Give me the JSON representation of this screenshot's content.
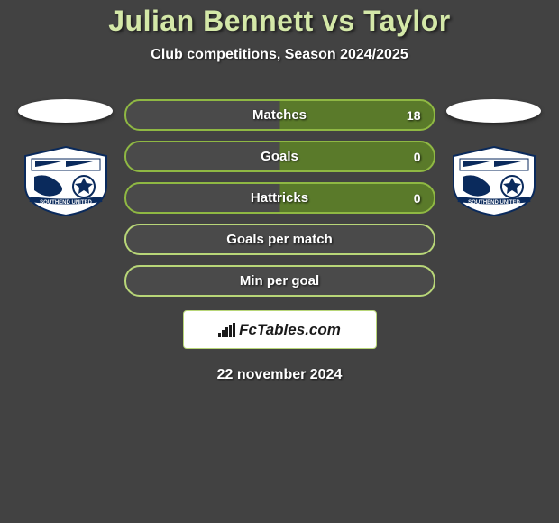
{
  "title": "Julian Bennett vs Taylor",
  "subtitle": "Club competitions, Season 2024/2025",
  "stats": [
    {
      "label": "Matches",
      "value": "18",
      "has_value": true
    },
    {
      "label": "Goals",
      "value": "0",
      "has_value": true
    },
    {
      "label": "Hattricks",
      "value": "0",
      "has_value": true
    },
    {
      "label": "Goals per match",
      "value": null,
      "has_value": false
    },
    {
      "label": "Min per goal",
      "value": null,
      "has_value": false
    }
  ],
  "brand_label": "FcTables.com",
  "date_label": "22 november 2024",
  "colors": {
    "bg": "#424242",
    "title": "#d4e8a8",
    "accent_border": "#b8d678",
    "bar_fill": "#5a7a2a",
    "crest_blue": "#0a2a5c"
  },
  "crest": {
    "club_name": "SOUTHEND UNITED"
  }
}
